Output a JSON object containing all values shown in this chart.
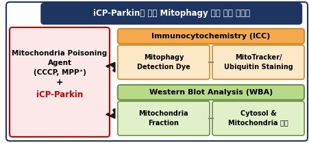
{
  "title": "iCP-Parkin에 의한 Mitophagy 유도 검증 분석법",
  "title_bg": "#1e3461",
  "title_fg": "#ffffff",
  "outer_bg": "#ffffff",
  "outer_border": "#1e3461",
  "left_box_text_line1": "Mitochondria Poisoning",
  "left_box_text_line2": "Agent",
  "left_box_text_line3": "(CCCP, MPP⁺)",
  "left_box_text_line4": "+",
  "left_box_text_line5": "iCP-Parkin",
  "left_box_bg": "#fce8e8",
  "left_box_border": "#cc0000",
  "left_box_highlight_color": "#cc0000",
  "icc_header_text": "Immunocytochemistry (ICC)",
  "icc_header_bg": "#f5a94e",
  "icc_header_border": "#d4882a",
  "icc_left_text": "Mitophagy\nDetection Dye",
  "icc_right_text": "MitoTracker/\nUbiquitin Staining",
  "icc_sub_bg": "#fde8c8",
  "icc_sub_border": "#d4882a",
  "wba_header_text": "Western Blot Analysis (WBA)",
  "wba_header_bg": "#b8d98a",
  "wba_header_border": "#6a9040",
  "wba_left_text": "Mitochondria\nFraction",
  "wba_right_text": "Cytosol &\nMitochondria 분리",
  "wba_sub_bg": "#e0f0c8",
  "wba_sub_border": "#6a9040",
  "arrow_color": "#1a1a1a",
  "divider_color": "#888888"
}
